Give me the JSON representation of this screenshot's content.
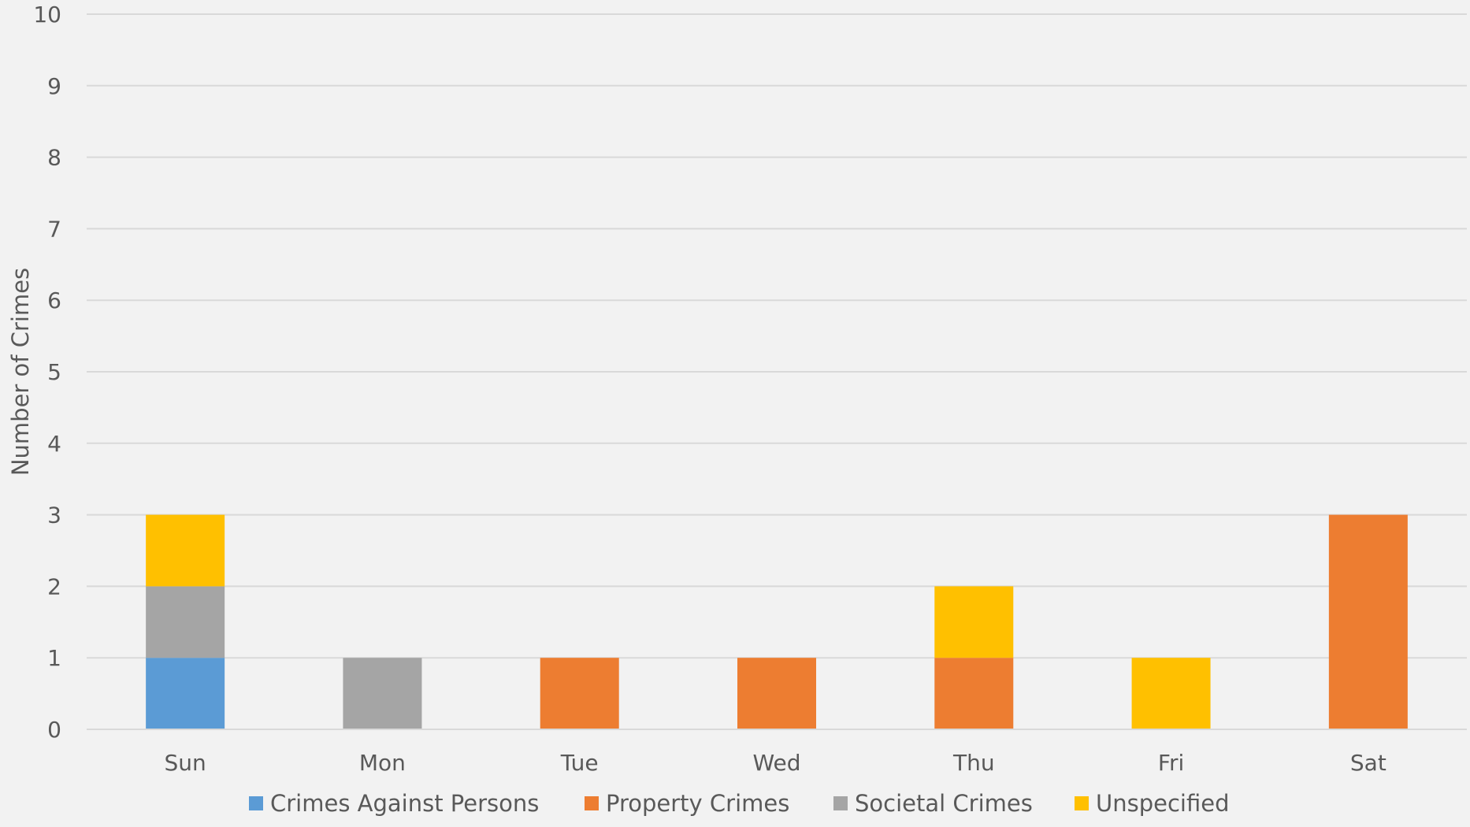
{
  "chart_data": {
    "type": "bar",
    "stacked": true,
    "title": "",
    "xlabel": "",
    "ylabel": "Number of Crimes",
    "ylim": [
      0,
      10
    ],
    "yticks": [
      0,
      1,
      2,
      3,
      4,
      5,
      6,
      7,
      8,
      9,
      10
    ],
    "grid": true,
    "legend_position": "bottom",
    "categories": [
      "Sun",
      "Mon",
      "Tue",
      "Wed",
      "Thu",
      "Fri",
      "Sat"
    ],
    "series": [
      {
        "name": "Crimes Against Persons",
        "color": "#5b9bd5",
        "values": [
          1,
          0,
          0,
          0,
          0,
          0,
          0
        ]
      },
      {
        "name": "Property Crimes",
        "color": "#ed7d31",
        "values": [
          0,
          0,
          1,
          1,
          1,
          0,
          3
        ]
      },
      {
        "name": "Societal Crimes",
        "color": "#a5a5a5",
        "values": [
          1,
          1,
          0,
          0,
          0,
          0,
          0
        ]
      },
      {
        "name": "Unspecified",
        "color": "#ffc000",
        "values": [
          1,
          0,
          0,
          0,
          1,
          1,
          0
        ]
      }
    ]
  }
}
